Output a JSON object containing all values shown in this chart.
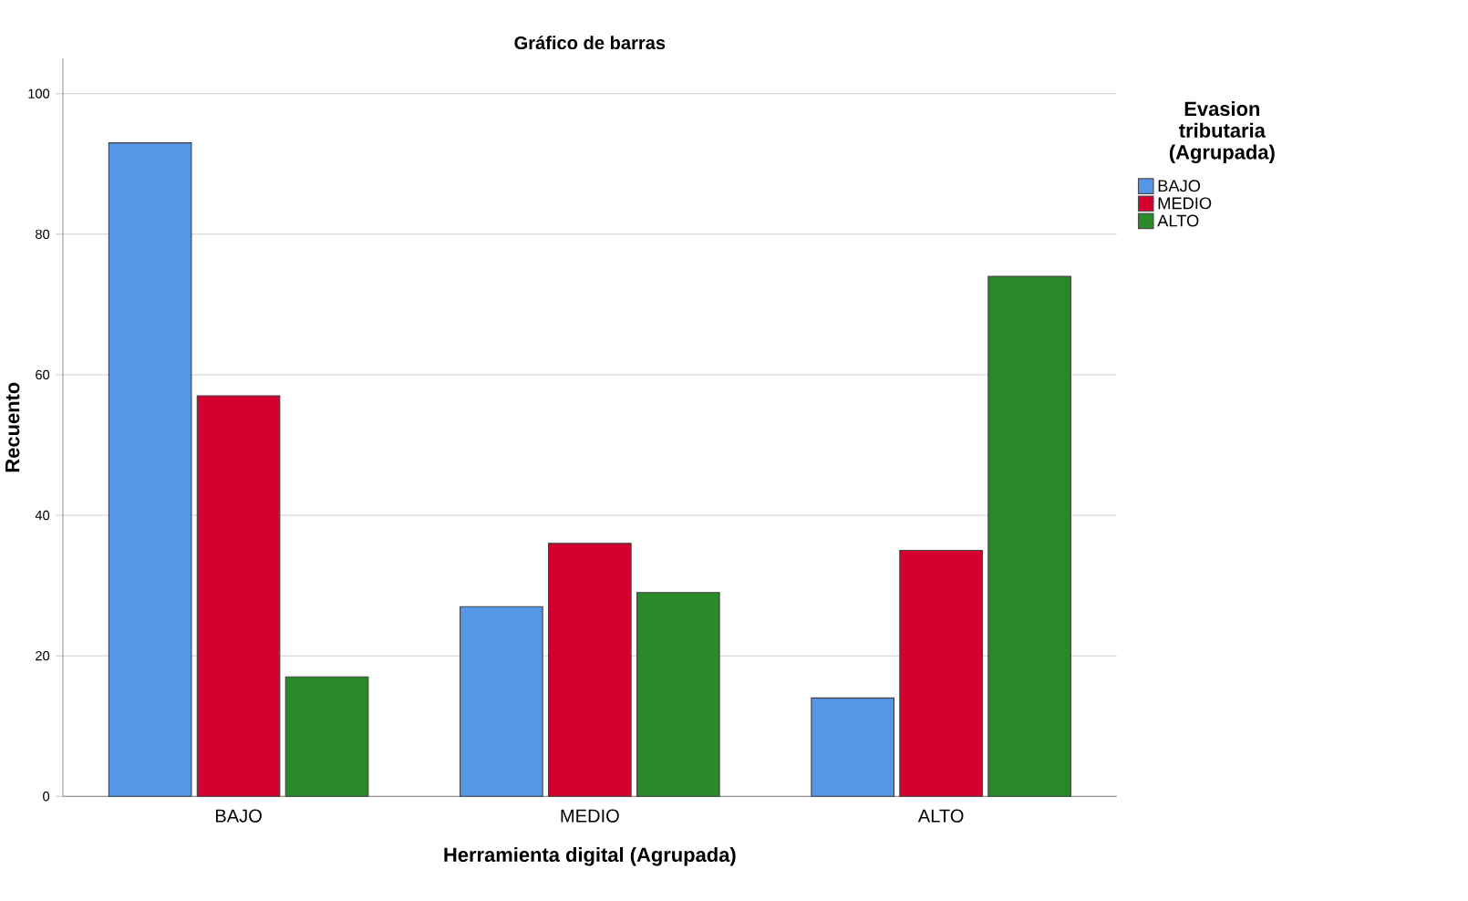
{
  "chart_data": {
    "type": "bar",
    "title": "Gráfico de barras",
    "xlabel": "Herramienta digital (Agrupada)",
    "ylabel": "Recuento",
    "legend_title": "Evasion tributaria (Agrupada)",
    "categories": [
      "BAJO",
      "MEDIO",
      "ALTO"
    ],
    "series": [
      {
        "name": "BAJO",
        "color": "#5596e6",
        "values": [
          93,
          27,
          14
        ]
      },
      {
        "name": "MEDIO",
        "color": "#d5002f",
        "values": [
          57,
          36,
          35
        ]
      },
      {
        "name": "ALTO",
        "color": "#2a8a2a",
        "values": [
          17,
          29,
          74
        ]
      }
    ],
    "ylim": [
      0,
      105
    ],
    "yticks": [
      0,
      20,
      40,
      60,
      80,
      100
    ],
    "grid": "y",
    "legend": "top right"
  }
}
